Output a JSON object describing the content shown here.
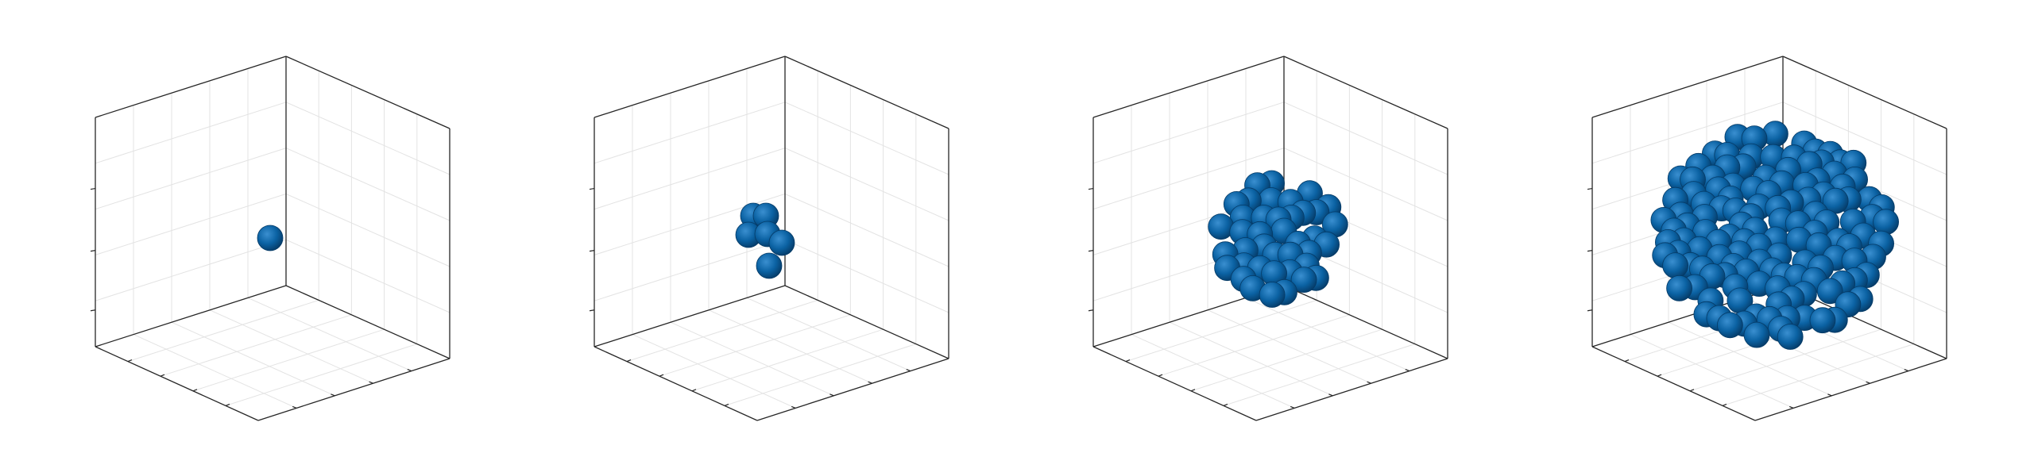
{
  "figure": {
    "panel_count": 4,
    "sphere_color": "#0b62a3",
    "sphere_highlight": "#3a8fd0",
    "sphere_shadow": "#053a66",
    "axis_color": "#262626",
    "grid_color": "#e3e3e3",
    "background": "#ffffff",
    "tick_labels_visible": false
  },
  "chart_data": [
    {
      "type": "3d-scatter",
      "title": "",
      "xlabel": "",
      "ylabel": "",
      "zlabel": "",
      "grid": true,
      "sphere_count": 1
    },
    {
      "type": "3d-scatter",
      "title": "",
      "xlabel": "",
      "ylabel": "",
      "zlabel": "",
      "grid": true,
      "sphere_count": 6
    },
    {
      "type": "3d-scatter",
      "title": "",
      "xlabel": "",
      "ylabel": "",
      "zlabel": "",
      "grid": true,
      "sphere_count": 40
    },
    {
      "type": "3d-scatter",
      "title": "",
      "xlabel": "",
      "ylabel": "",
      "zlabel": "",
      "grid": true,
      "sphere_count": 130
    }
  ]
}
